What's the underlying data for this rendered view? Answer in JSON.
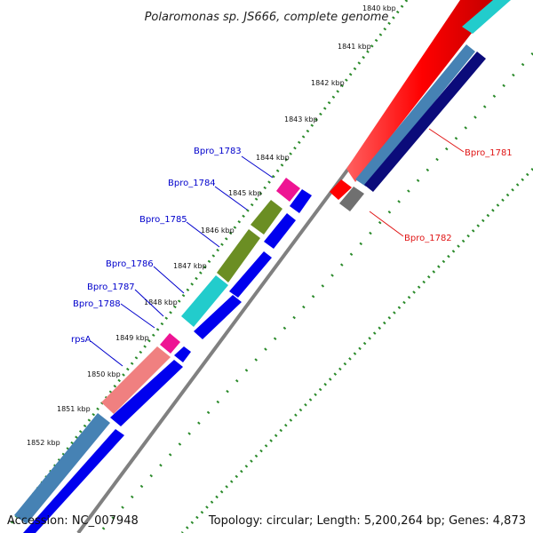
{
  "title": "Polaromonas sp. JS666, complete genome",
  "accession": "Accession: NC_007948",
  "summary": "Topology: circular; Length: 5,200,264 bp; Genes: 4,873",
  "ticks": [
    "1840 kbp",
    "1841 kbp",
    "1842 kbp",
    "1843 kbp",
    "1844 kbp",
    "1845 kbp",
    "1846 kbp",
    "1847 kbp",
    "1848 kbp",
    "1849 kbp",
    "1850 kbp",
    "1851 kbp",
    "1852 kbp"
  ],
  "genes": [
    {
      "name": "Bpro_1781",
      "color": "#e01515"
    },
    {
      "name": "Bpro_1782",
      "color": "#e01515"
    },
    {
      "name": "Bpro_1783",
      "color": "#0000cc"
    },
    {
      "name": "Bpro_1784",
      "color": "#0000cc"
    },
    {
      "name": "Bpro_1785",
      "color": "#0000cc"
    },
    {
      "name": "Bpro_1786",
      "color": "#0000cc"
    },
    {
      "name": "Bpro_1787",
      "color": "#0000cc"
    },
    {
      "name": "Bpro_1788",
      "color": "#0000cc"
    },
    {
      "name": "rpsA",
      "color": "#0000cc"
    }
  ],
  "colors": {
    "red_gene": "#ff0000",
    "teal_gene": "#22cccc",
    "steel_gene": "#4682b4",
    "navy_gene": "#0b0b7a",
    "blue_gene": "#0000ee",
    "pink_gene": "#ee1493",
    "olive_gene": "#6b8e23",
    "salmon_gene": "#f08080",
    "gray_gene": "#707070",
    "dotted_ring": "#2a8a2a",
    "backbone": "#888888"
  }
}
